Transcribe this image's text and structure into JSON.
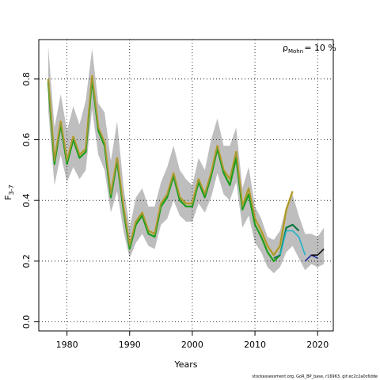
{
  "chart_data": {
    "type": "line",
    "xlabel": "Years",
    "ylabel_main": "F",
    "ylabel_sub": "3-7",
    "xlim": [
      1975.5,
      2022.5
    ],
    "ylim": [
      -0.03,
      0.93
    ],
    "x_ticks": [
      1980,
      1990,
      2000,
      2010,
      2020
    ],
    "y_ticks": [
      0.0,
      0.2,
      0.4,
      0.6,
      0.8
    ],
    "grid": true,
    "annotation_symbol": "ρ",
    "annotation_sub": "Mohn",
    "annotation_value": "= 10 %",
    "footer": "stockassessment.org, GoR_BP_base, r16963, git:ec2c2a0c6dde",
    "confidence_band": {
      "color": "#bebebe",
      "x": [
        1977,
        1978,
        1979,
        1980,
        1981,
        1982,
        1983,
        1984,
        1985,
        1986,
        1987,
        1988,
        1989,
        1990,
        1991,
        1992,
        1993,
        1994,
        1995,
        1996,
        1997,
        1998,
        1999,
        2000,
        2001,
        2002,
        2003,
        2004,
        2005,
        2006,
        2007,
        2008,
        2009,
        2010,
        2011,
        2012,
        2013,
        2014,
        2015,
        2016,
        2017,
        2018,
        2019,
        2020,
        2021
      ],
      "lower": [
        0.7,
        0.45,
        0.55,
        0.46,
        0.51,
        0.47,
        0.5,
        0.7,
        0.55,
        0.5,
        0.36,
        0.43,
        0.3,
        0.21,
        0.26,
        0.29,
        0.25,
        0.24,
        0.32,
        0.34,
        0.4,
        0.35,
        0.33,
        0.33,
        0.39,
        0.36,
        0.41,
        0.49,
        0.42,
        0.4,
        0.46,
        0.31,
        0.35,
        0.26,
        0.23,
        0.18,
        0.16,
        0.18,
        0.23,
        0.25,
        0.21,
        0.17,
        0.19,
        0.18,
        0.19
      ],
      "upper": [
        0.91,
        0.64,
        0.75,
        0.63,
        0.71,
        0.65,
        0.73,
        0.9,
        0.72,
        0.69,
        0.53,
        0.66,
        0.45,
        0.31,
        0.41,
        0.44,
        0.38,
        0.38,
        0.46,
        0.51,
        0.58,
        0.5,
        0.47,
        0.45,
        0.54,
        0.5,
        0.6,
        0.67,
        0.58,
        0.58,
        0.64,
        0.44,
        0.51,
        0.38,
        0.34,
        0.28,
        0.27,
        0.3,
        0.38,
        0.42,
        0.35,
        0.29,
        0.29,
        0.28,
        0.31
      ]
    },
    "series": [
      {
        "color": "#e8a000",
        "width": 2.4,
        "x": [
          1977,
          1978,
          1979,
          1980,
          1981,
          1982,
          1983,
          1984,
          1985,
          1986,
          1987,
          1988,
          1989,
          1990,
          1991,
          1992,
          1993,
          1994,
          1995,
          1996,
          1997,
          1998,
          1999,
          2000,
          2001,
          2002,
          2003,
          2004,
          2005,
          2006,
          2007,
          2008,
          2009,
          2010,
          2011,
          2012,
          2013,
          2014,
          2015,
          2016
        ],
        "values": [
          0.8,
          0.53,
          0.66,
          0.53,
          0.61,
          0.55,
          0.57,
          0.81,
          0.64,
          0.59,
          0.42,
          0.54,
          0.38,
          0.25,
          0.33,
          0.36,
          0.3,
          0.29,
          0.39,
          0.42,
          0.49,
          0.41,
          0.39,
          0.39,
          0.47,
          0.42,
          0.49,
          0.58,
          0.5,
          0.47,
          0.56,
          0.38,
          0.44,
          0.34,
          0.3,
          0.25,
          0.22,
          0.25,
          0.37,
          0.43
        ]
      },
      {
        "color": "#1b9e1b",
        "width": 2.2,
        "x": [
          1977,
          1978,
          1979,
          1980,
          1981,
          1982,
          1983,
          1984,
          1985,
          1986,
          1987,
          1988,
          1989,
          1990,
          1991,
          1992,
          1993,
          1994,
          1995,
          1996,
          1997,
          1998,
          1999,
          2000,
          2001,
          2002,
          2003,
          2004,
          2005,
          2006,
          2007,
          2008,
          2009,
          2010,
          2011,
          2012,
          2013,
          2014,
          2015,
          2016,
          2017
        ],
        "values": [
          0.79,
          0.52,
          0.65,
          0.52,
          0.6,
          0.54,
          0.56,
          0.8,
          0.63,
          0.58,
          0.41,
          0.53,
          0.37,
          0.24,
          0.32,
          0.35,
          0.29,
          0.28,
          0.38,
          0.41,
          0.48,
          0.4,
          0.38,
          0.38,
          0.46,
          0.41,
          0.48,
          0.57,
          0.49,
          0.45,
          0.54,
          0.37,
          0.42,
          0.32,
          0.28,
          0.23,
          0.2,
          0.22,
          0.31,
          0.32,
          0.3
        ]
      },
      {
        "color": "#9a9a3a",
        "width": 1.6,
        "x": [
          1977,
          1978,
          1979,
          1980,
          1981,
          1982,
          1983,
          1984,
          1985,
          1986,
          1987,
          1988,
          1989,
          1990,
          1991,
          1992,
          1993,
          1994,
          1995,
          1996,
          1997,
          1998,
          1999,
          2000,
          2001,
          2002,
          2003,
          2004,
          2005,
          2006,
          2007,
          2008,
          2009,
          2010,
          2011,
          2012,
          2013,
          2014,
          2015,
          2016
        ],
        "values": [
          0.8,
          0.53,
          0.66,
          0.53,
          0.61,
          0.55,
          0.57,
          0.81,
          0.64,
          0.59,
          0.42,
          0.54,
          0.38,
          0.25,
          0.33,
          0.36,
          0.3,
          0.29,
          0.39,
          0.42,
          0.49,
          0.41,
          0.39,
          0.39,
          0.47,
          0.42,
          0.49,
          0.58,
          0.5,
          0.47,
          0.56,
          0.38,
          0.44,
          0.34,
          0.3,
          0.25,
          0.22,
          0.25,
          0.37,
          0.43
        ]
      },
      {
        "color": "#0d6b55",
        "width": 1.6,
        "x": [
          2013,
          2014,
          2015,
          2016,
          2017
        ],
        "values": [
          0.21,
          0.22,
          0.31,
          0.32,
          0.3
        ]
      },
      {
        "color": "#20b2c8",
        "width": 1.6,
        "x": [
          2014,
          2015,
          2016,
          2017,
          2018
        ],
        "values": [
          0.22,
          0.3,
          0.3,
          0.28,
          0.22
        ]
      },
      {
        "color": "#1a2a9a",
        "width": 1.6,
        "x": [
          2018,
          2019,
          2020
        ],
        "values": [
          0.2,
          0.22,
          0.21
        ]
      },
      {
        "color": "#111111",
        "width": 1.6,
        "x": [
          2019,
          2020,
          2021
        ],
        "values": [
          0.22,
          0.22,
          0.24
        ]
      }
    ]
  }
}
